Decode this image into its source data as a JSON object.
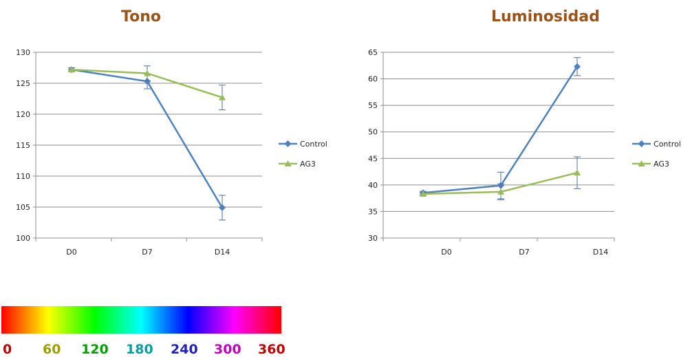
{
  "chart_data": [
    {
      "type": "line",
      "title": "Tono",
      "categories": [
        "D0",
        "D7",
        "D14"
      ],
      "ylim": [
        100,
        130
      ],
      "yticks": [
        100,
        105,
        110,
        115,
        120,
        125,
        130
      ],
      "grid": true,
      "legend_position": "right",
      "series": [
        {
          "name": "Control",
          "values": [
            127.2,
            125.3,
            104.9
          ],
          "errors": [
            0.3,
            1.2,
            2.0
          ],
          "color": "#4F81BD",
          "marker": "diamond"
        },
        {
          "name": "AG3",
          "values": [
            127.2,
            126.6,
            122.7
          ],
          "errors": [
            0.3,
            1.2,
            2.0
          ],
          "color": "#9BBB59",
          "marker": "triangle"
        }
      ]
    },
    {
      "type": "line",
      "title": "Luminosidad",
      "categories": [
        "D0",
        "D7",
        "D14"
      ],
      "ylim": [
        30,
        65
      ],
      "yticks": [
        30,
        35,
        40,
        45,
        50,
        55,
        60,
        65
      ],
      "grid": true,
      "legend_position": "right",
      "series": [
        {
          "name": "Control",
          "values": [
            38.5,
            39.9,
            62.3
          ],
          "errors": [
            0.3,
            2.5,
            1.7
          ],
          "color": "#4F81BD",
          "marker": "diamond"
        },
        {
          "name": "AG3",
          "values": [
            38.3,
            38.7,
            42.3
          ],
          "errors": [
            0.3,
            1.5,
            3.0
          ],
          "color": "#9BBB59",
          "marker": "triangle"
        }
      ]
    }
  ],
  "hue_scale": {
    "labels": [
      {
        "text": "0",
        "color": "#C00000"
      },
      {
        "text": "60",
        "color": "#9BA000"
      },
      {
        "text": "120",
        "color": "#00A000"
      },
      {
        "text": "180",
        "color": "#00A0A0"
      },
      {
        "text": "240",
        "color": "#2020C0"
      },
      {
        "text": "300",
        "color": "#C000C0"
      },
      {
        "text": "360",
        "color": "#C00000"
      }
    ]
  }
}
